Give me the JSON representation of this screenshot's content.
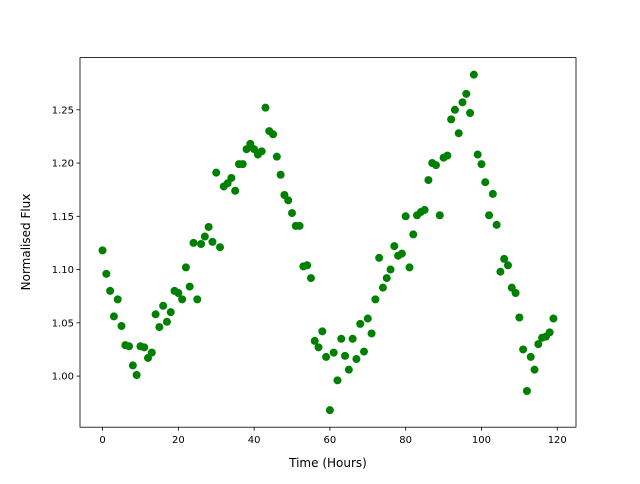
{
  "chart_data": {
    "type": "scatter",
    "title": "",
    "xlabel": "Time (Hours)",
    "ylabel": "Normalised Flux",
    "xlim": [
      -5.95,
      124.95
    ],
    "ylim": [
      0.952,
      1.299
    ],
    "xticks": [
      0,
      20,
      40,
      60,
      80,
      100,
      120
    ],
    "xtick_labels": [
      "0",
      "20",
      "40",
      "60",
      "80",
      "100",
      "120"
    ],
    "yticks": [
      1.0,
      1.05,
      1.1,
      1.15,
      1.2,
      1.25
    ],
    "ytick_labels": [
      "1.00",
      "1.05",
      "1.10",
      "1.15",
      "1.20",
      "1.25"
    ],
    "grid": false,
    "marker_color": "#008000",
    "x": [
      0,
      1,
      2,
      3,
      4,
      5,
      6,
      7,
      8,
      9,
      10,
      11,
      12,
      13,
      14,
      15,
      16,
      17,
      18,
      19,
      20,
      21,
      22,
      23,
      24,
      25,
      26,
      27,
      28,
      29,
      30,
      31,
      32,
      33,
      34,
      35,
      36,
      37,
      38,
      39,
      40,
      41,
      42,
      43,
      44,
      45,
      46,
      47,
      48,
      49,
      50,
      51,
      52,
      53,
      54,
      55,
      56,
      57,
      58,
      59,
      60,
      61,
      62,
      63,
      64,
      65,
      66,
      67,
      68,
      69,
      70,
      71,
      72,
      73,
      74,
      75,
      76,
      77,
      78,
      79,
      80,
      81,
      82,
      83,
      84,
      85,
      86,
      87,
      88,
      89,
      90,
      91,
      92,
      93,
      94,
      95,
      96,
      97,
      98,
      99,
      100,
      101,
      102,
      103,
      104,
      105,
      106,
      107,
      108,
      109,
      110,
      111,
      112,
      113,
      114,
      115,
      116,
      117,
      118,
      119
    ],
    "y": [
      1.118,
      1.096,
      1.08,
      1.056,
      1.072,
      1.047,
      1.029,
      1.028,
      1.01,
      1.001,
      1.028,
      1.027,
      1.017,
      1.022,
      1.058,
      1.046,
      1.066,
      1.051,
      1.06,
      1.08,
      1.078,
      1.072,
      1.102,
      1.084,
      1.125,
      1.072,
      1.124,
      1.131,
      1.14,
      1.126,
      1.191,
      1.121,
      1.178,
      1.181,
      1.186,
      1.174,
      1.199,
      1.199,
      1.213,
      1.218,
      1.213,
      1.208,
      1.211,
      1.252,
      1.23,
      1.227,
      1.206,
      1.189,
      1.17,
      1.165,
      1.153,
      1.141,
      1.141,
      1.103,
      1.104,
      1.092,
      1.033,
      1.027,
      1.042,
      1.018,
      0.968,
      1.022,
      0.996,
      1.035,
      1.019,
      1.006,
      1.035,
      1.016,
      1.049,
      1.023,
      1.054,
      1.04,
      1.072,
      1.111,
      1.083,
      1.092,
      1.1,
      1.122,
      1.113,
      1.115,
      1.15,
      1.102,
      1.133,
      1.151,
      1.154,
      1.156,
      1.184,
      1.2,
      1.198,
      1.151,
      1.205,
      1.207,
      1.241,
      1.25,
      1.228,
      1.257,
      1.265,
      1.247,
      1.283,
      1.208,
      1.199,
      1.182,
      1.151,
      1.171,
      1.142,
      1.098,
      1.11,
      1.104,
      1.083,
      1.078,
      1.055,
      1.025,
      0.986,
      1.018,
      1.006,
      1.03,
      1.036,
      1.037,
      1.041,
      1.054
    ]
  }
}
